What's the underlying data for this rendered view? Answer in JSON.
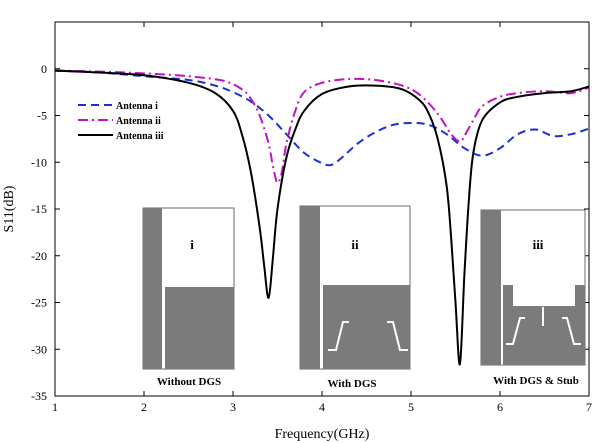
{
  "chart_data": {
    "type": "line",
    "title": "",
    "xlabel": "Frequency(GHz)",
    "ylabel": "S11(dB)",
    "xlim": [
      1,
      7
    ],
    "ylim": [
      -35,
      5
    ],
    "x_ticks": [
      1,
      2,
      3,
      4,
      5,
      6,
      7
    ],
    "y_ticks": [
      0,
      -5,
      -10,
      -15,
      -20,
      -25,
      -30,
      -35
    ],
    "grid": false,
    "legend_position": "top-left",
    "series": [
      {
        "name": "Antenna i",
        "color": "#1a2fd6",
        "style": "dashed",
        "x": [
          1.0,
          1.5,
          2.0,
          2.5,
          2.8,
          3.0,
          3.2,
          3.4,
          3.6,
          3.8,
          4.0,
          4.1,
          4.2,
          4.4,
          4.6,
          4.8,
          5.0,
          5.2,
          5.4,
          5.6,
          5.8,
          6.0,
          6.2,
          6.4,
          6.6,
          6.8,
          7.0
        ],
        "y": [
          -0.2,
          -0.4,
          -0.8,
          -1.2,
          -1.8,
          -2.5,
          -3.5,
          -5.0,
          -7.0,
          -9.0,
          -10.1,
          -10.3,
          -9.7,
          -8.0,
          -6.8,
          -6.0,
          -5.8,
          -6.0,
          -7.0,
          -8.5,
          -9.3,
          -8.5,
          -7.0,
          -6.5,
          -7.2,
          -7.0,
          -6.4
        ]
      },
      {
        "name": "Antenna ii",
        "color": "#c012c0",
        "style": "dashdot",
        "x": [
          1.0,
          1.5,
          2.0,
          2.5,
          2.9,
          3.1,
          3.2,
          3.3,
          3.4,
          3.45,
          3.5,
          3.55,
          3.6,
          3.7,
          3.8,
          4.0,
          4.3,
          4.6,
          4.9,
          5.1,
          5.3,
          5.45,
          5.55,
          5.6,
          5.7,
          5.8,
          6.0,
          6.2,
          6.5,
          6.8,
          7.0
        ],
        "y": [
          -0.2,
          -0.3,
          -0.5,
          -0.8,
          -1.3,
          -2.2,
          -3.2,
          -5.0,
          -8.0,
          -10.5,
          -12.2,
          -11.0,
          -8.0,
          -4.5,
          -2.5,
          -1.5,
          -1.1,
          -1.2,
          -1.8,
          -2.8,
          -4.8,
          -7.0,
          -7.8,
          -7.2,
          -5.5,
          -4.0,
          -3.0,
          -2.6,
          -2.4,
          -2.6,
          -2.0
        ]
      },
      {
        "name": "Antenna iii",
        "color": "#000000",
        "style": "solid",
        "x": [
          1.0,
          1.5,
          2.0,
          2.5,
          2.8,
          3.0,
          3.1,
          3.2,
          3.3,
          3.35,
          3.4,
          3.45,
          3.5,
          3.6,
          3.7,
          3.8,
          4.0,
          4.3,
          4.6,
          4.9,
          5.1,
          5.2,
          5.3,
          5.4,
          5.45,
          5.5,
          5.55,
          5.6,
          5.65,
          5.7,
          5.8,
          6.0,
          6.2,
          6.5,
          6.8,
          7.0
        ],
        "y": [
          -0.2,
          -0.4,
          -0.7,
          -1.5,
          -2.6,
          -4.5,
          -7.0,
          -11.0,
          -17.0,
          -21.0,
          -24.5,
          -20.0,
          -15.0,
          -9.5,
          -6.5,
          -4.5,
          -2.7,
          -1.9,
          -1.8,
          -2.2,
          -3.4,
          -4.8,
          -7.5,
          -12.5,
          -18.0,
          -25.0,
          -31.6,
          -22.0,
          -14.0,
          -9.0,
          -5.5,
          -3.6,
          -3.0,
          -2.6,
          -2.4,
          -1.9
        ]
      }
    ],
    "insets": [
      {
        "roman": "i",
        "caption": "Without DGS"
      },
      {
        "roman": "ii",
        "caption": "With DGS"
      },
      {
        "roman": "iii",
        "caption": "With DGS & Stub"
      }
    ]
  }
}
